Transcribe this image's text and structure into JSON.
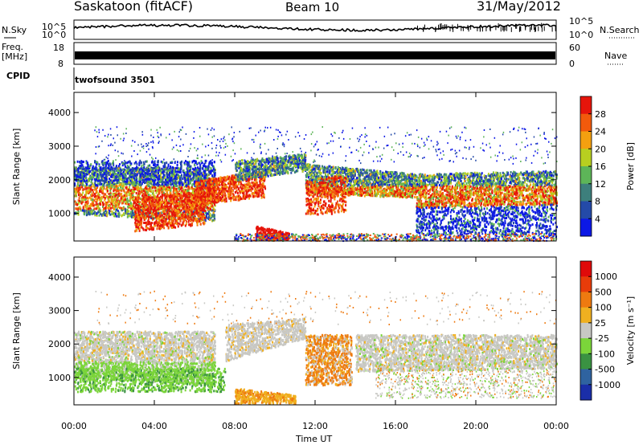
{
  "header": {
    "station": "Saskatoon (fitACF)",
    "beam": "Beam 10",
    "date": "31/May/2012"
  },
  "left_labels": {
    "nsky": "N.Sky",
    "freq_line1": "Freq.",
    "freq_line2": "[MHz]",
    "cpid": "CPID"
  },
  "right_labels": {
    "nsearch": "N.Search",
    "nave": "Nave"
  },
  "cpid_value": "twofsound 3501",
  "chart_data": [
    {
      "type": "line",
      "name": "noise",
      "ylabels": [
        "10^5",
        "10^0"
      ],
      "right_ylabels": [
        "10^5",
        "10^0"
      ],
      "scale": "log",
      "x_range": [
        "00:00",
        "24:00"
      ]
    },
    {
      "type": "line",
      "name": "frequency-nave",
      "ylabels": [
        "18",
        "8"
      ],
      "right_ylabels": [
        "60",
        "0"
      ]
    },
    {
      "type": "heatmap",
      "name": "power",
      "ylabel": "Slant Range [km]",
      "yticks": [
        1000,
        2000,
        3000,
        4000
      ],
      "ylim": [
        180,
        4600
      ],
      "colorbar": {
        "label": "Power [dB]",
        "ticks": [
          "4",
          "8",
          "12",
          "16",
          "20",
          "24",
          "28"
        ],
        "colors": [
          "#0c18e6",
          "#244aa8",
          "#3d7f7c",
          "#5db558",
          "#b8cf20",
          "#f4a010",
          "#f25a0c",
          "#e6150b"
        ]
      }
    },
    {
      "type": "heatmap",
      "name": "velocity",
      "ylabel": "Slant Range [km]",
      "yticks": [
        1000,
        2000,
        3000,
        4000
      ],
      "ylim": [
        180,
        4600
      ],
      "colorbar": {
        "label": "Velocity [m s^-1]",
        "ticks": [
          "1000",
          "500",
          "100",
          "25",
          "-25",
          "-100",
          "-500",
          "-1000"
        ],
        "colors": [
          "#1a2ea8",
          "#2f63a0",
          "#3a9242",
          "#7bd53a",
          "#c8c8c4",
          "#f0b020",
          "#ee7a10",
          "#e83c0a",
          "#e00a0a"
        ]
      }
    }
  ],
  "xaxis": {
    "label": "Time UT",
    "ticks": [
      "00:00",
      "04:00",
      "08:00",
      "12:00",
      "16:00",
      "20:00",
      "00:00"
    ]
  }
}
